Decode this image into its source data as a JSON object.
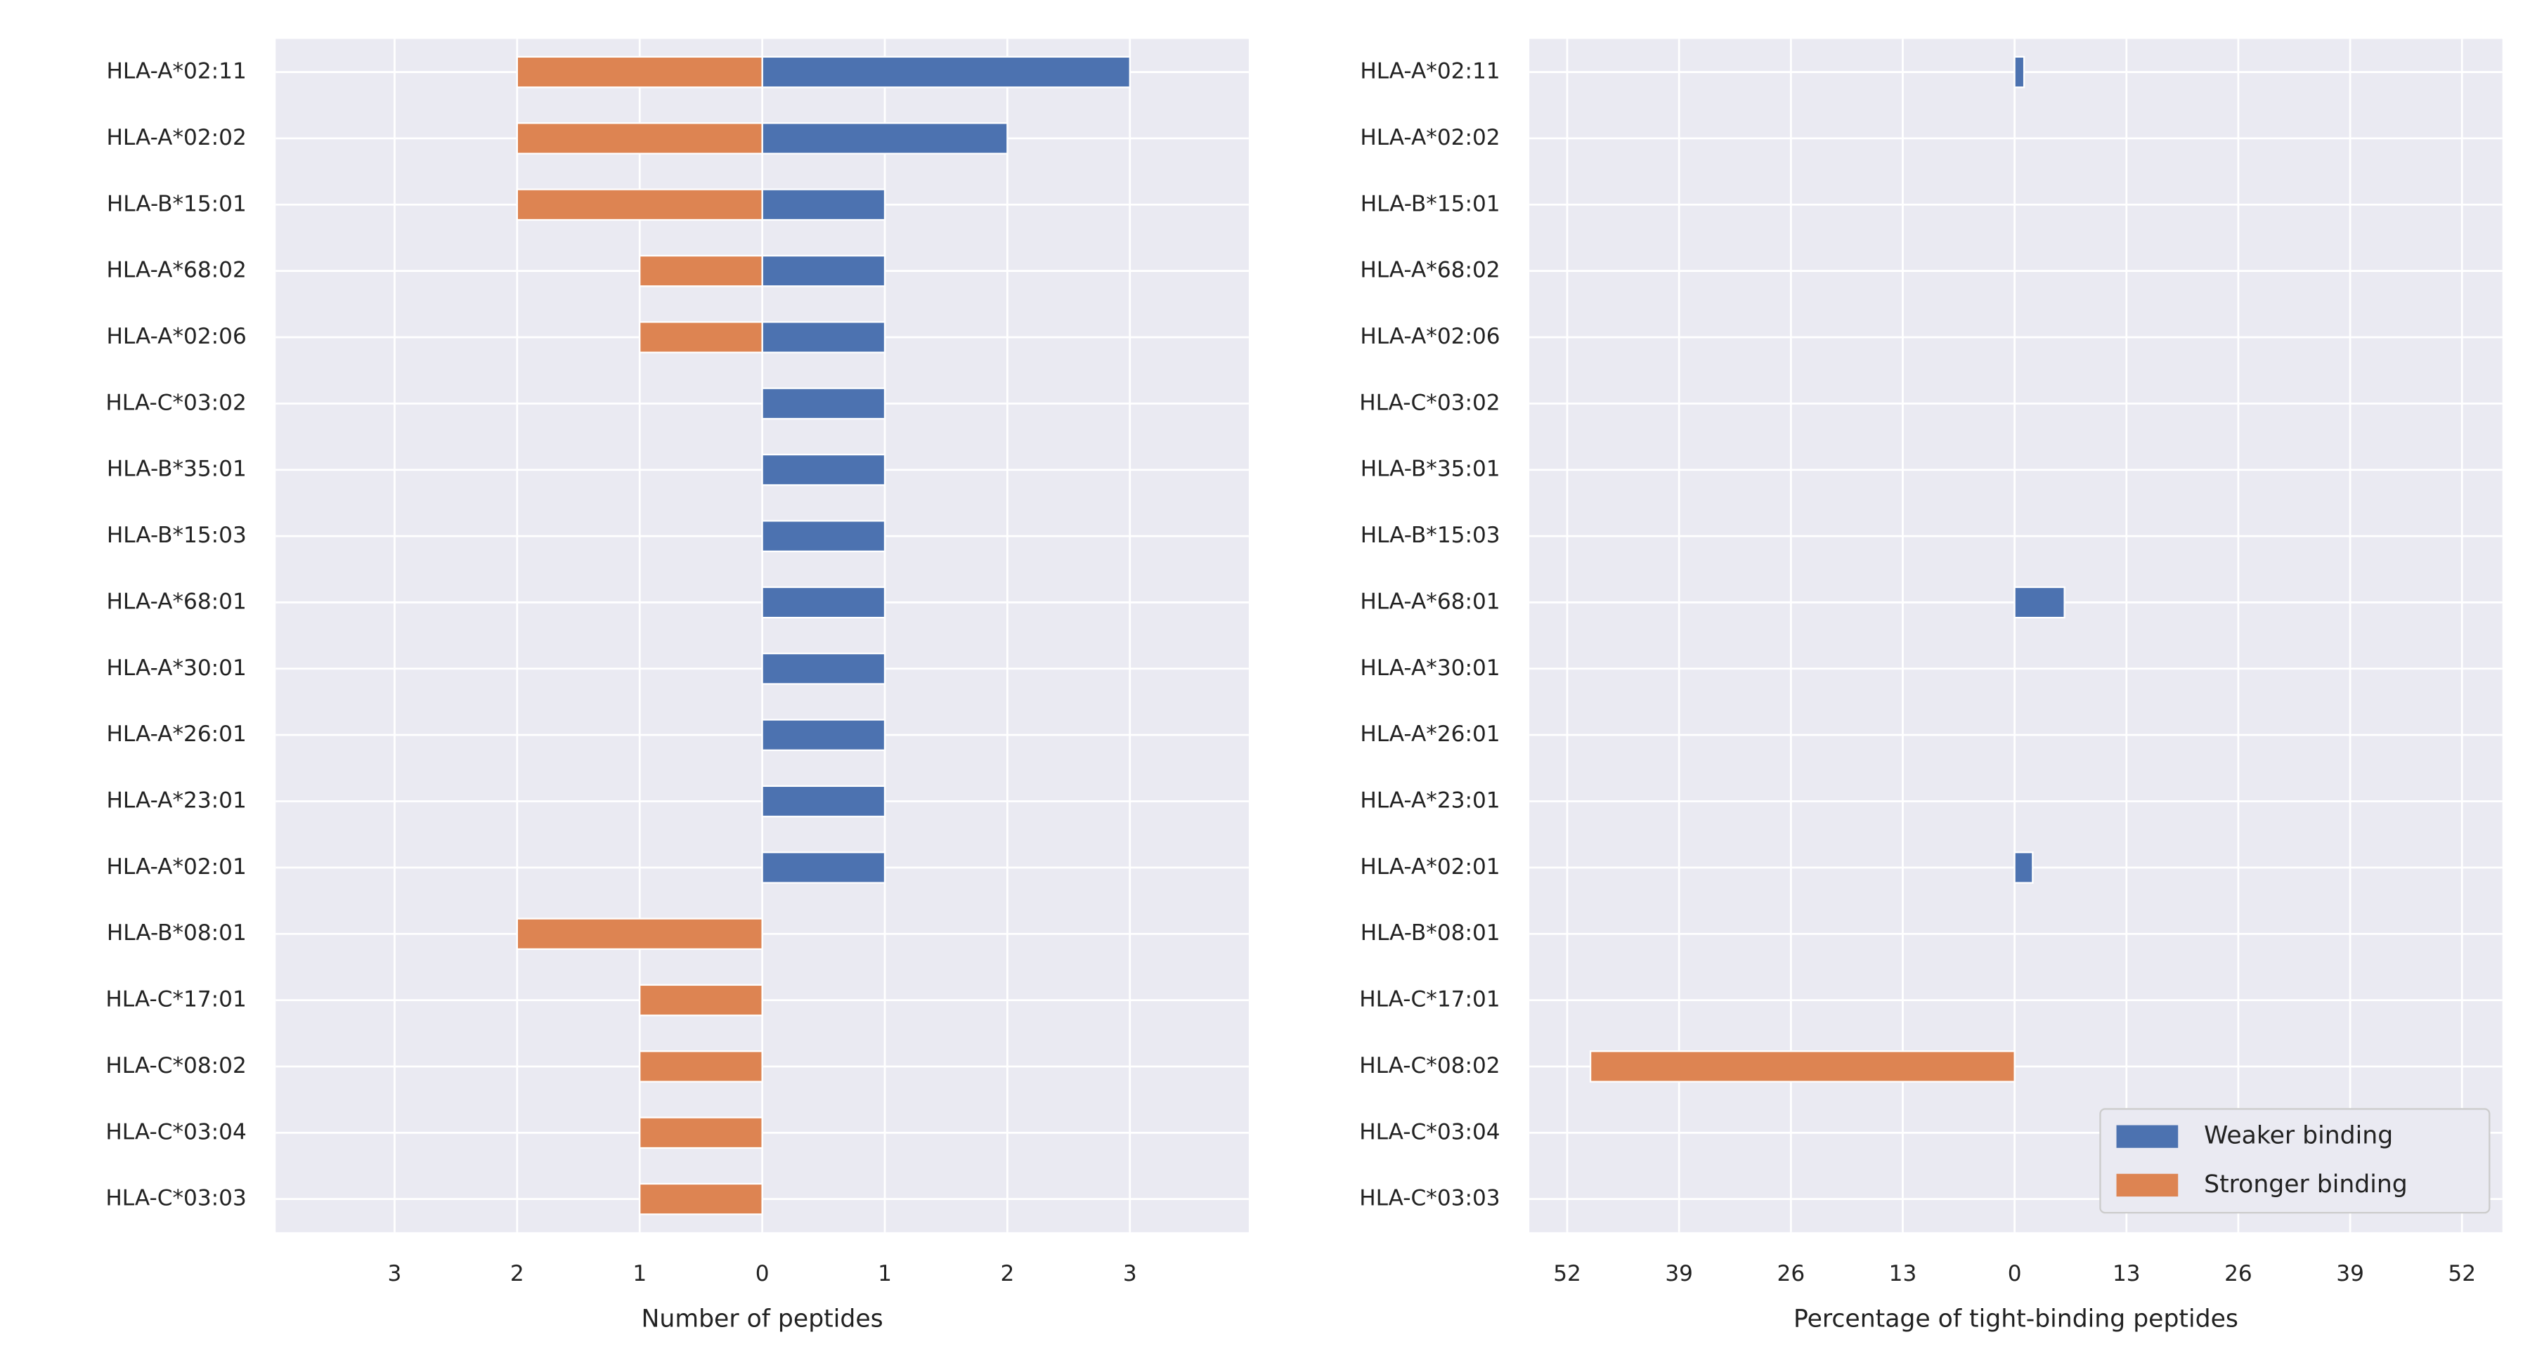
{
  "chart_data": [
    {
      "type": "bar",
      "orientation": "horizontal",
      "categories": [
        "HLA-A*02:11",
        "HLA-A*02:02",
        "HLA-B*15:01",
        "HLA-A*68:02",
        "HLA-A*02:06",
        "HLA-C*03:02",
        "HLA-B*35:01",
        "HLA-B*15:03",
        "HLA-A*68:01",
        "HLA-A*30:01",
        "HLA-A*26:01",
        "HLA-A*23:01",
        "HLA-A*02:01",
        "HLA-B*08:01",
        "HLA-C*17:01",
        "HLA-C*08:02",
        "HLA-C*03:04",
        "HLA-C*03:03"
      ],
      "series": [
        {
          "color": "#4c72b0",
          "values": [
            3,
            2,
            1,
            1,
            1,
            1,
            1,
            1,
            1,
            1,
            1,
            1,
            1,
            0,
            0,
            0,
            0,
            0
          ]
        },
        {
          "color": "#dd8452",
          "values": [
            -2,
            -2,
            -2,
            -1,
            -1,
            0,
            0,
            0,
            0,
            0,
            0,
            0,
            0,
            -2,
            -1,
            -1,
            -1,
            -1
          ]
        }
      ],
      "xlabel": "Number of peptides",
      "xlim": [
        -3.97,
        3.97
      ],
      "xticks": [
        {
          "value": -3,
          "label": "3"
        },
        {
          "value": -2,
          "label": "2"
        },
        {
          "value": -1,
          "label": "1"
        },
        0,
        1,
        2,
        3
      ],
      "grid": true
    },
    {
      "type": "bar",
      "orientation": "horizontal",
      "categories": [
        "HLA-A*02:11",
        "HLA-A*02:02",
        "HLA-B*15:01",
        "HLA-A*68:02",
        "HLA-A*02:06",
        "HLA-C*03:02",
        "HLA-B*35:01",
        "HLA-B*15:03",
        "HLA-A*68:01",
        "HLA-A*30:01",
        "HLA-A*26:01",
        "HLA-A*23:01",
        "HLA-A*02:01",
        "HLA-B*08:01",
        "HLA-C*17:01",
        "HLA-C*08:02",
        "HLA-C*03:04",
        "HLA-C*03:03"
      ],
      "series": [
        {
          "name": "Weaker binding",
          "color": "#4c72b0",
          "values": [
            1.1,
            0,
            0,
            0,
            0,
            0,
            0,
            0,
            5.8,
            0,
            0,
            0,
            2.1,
            0,
            0,
            0,
            0,
            0
          ]
        },
        {
          "name": "Stronger binding",
          "color": "#dd8452",
          "values": [
            0,
            0,
            0,
            0,
            0,
            0,
            0,
            0,
            0,
            0,
            0,
            0,
            0,
            0,
            0,
            -49.3,
            0,
            0
          ]
        }
      ],
      "xlabel": "Percentage of tight-binding peptides",
      "xlim": [
        -56.4,
        56.7
      ],
      "xticks": [
        {
          "value": -52,
          "label": "52"
        },
        {
          "value": -39,
          "label": "39"
        },
        {
          "value": -26,
          "label": "26"
        },
        {
          "value": -13,
          "label": "13"
        },
        0,
        13,
        26,
        39,
        52
      ],
      "grid": true,
      "legend": "lower right"
    }
  ]
}
